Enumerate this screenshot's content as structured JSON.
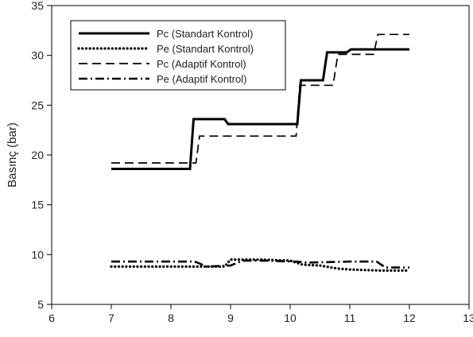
{
  "chart_data": {
    "type": "line",
    "title": "",
    "xlabel": "",
    "ylabel": "Basınç (bar)",
    "xlim": [
      6,
      13
    ],
    "ylim": [
      5,
      35
    ],
    "x_ticks": [
      "6",
      "7",
      "8",
      "9",
      "10",
      "11",
      "12",
      "13"
    ],
    "y_ticks": [
      "5",
      "10",
      "15",
      "20",
      "25",
      "30",
      "35"
    ],
    "grid": false,
    "legend_position": "top-left",
    "series": [
      {
        "name": "Pc (Standart Kontrol)",
        "style": "solid",
        "color": "#000000",
        "x": [
          7.0,
          8.32,
          8.38,
          8.9,
          8.96,
          10.12,
          10.18,
          10.55,
          10.62,
          10.95,
          11.02,
          12.0
        ],
        "y": [
          18.6,
          18.6,
          23.6,
          23.6,
          23.1,
          23.1,
          27.5,
          27.5,
          30.3,
          30.3,
          30.6,
          30.6
        ]
      },
      {
        "name": "Pe (Standart Kontrol)",
        "style": "dotted",
        "color": "#000000",
        "x": [
          7.0,
          7.5,
          8.0,
          8.5,
          8.9,
          9.0,
          9.5,
          10.0,
          10.2,
          10.5,
          10.8,
          11.0,
          11.5,
          12.0
        ],
        "y": [
          8.8,
          8.8,
          8.8,
          8.8,
          8.8,
          9.5,
          9.5,
          9.4,
          9.0,
          8.9,
          8.6,
          8.5,
          8.4,
          8.4
        ]
      },
      {
        "name": "Pc (Adaptif Kontrol)",
        "style": "dashed",
        "color": "#000000",
        "x": [
          7.0,
          8.42,
          8.48,
          10.1,
          10.16,
          10.72,
          10.8,
          11.4,
          11.47,
          12.0
        ],
        "y": [
          19.2,
          19.2,
          21.9,
          21.9,
          27.0,
          27.0,
          30.1,
          30.1,
          32.1,
          32.1
        ]
      },
      {
        "name": "Pe (Adaptif Kontrol)",
        "style": "dashdot",
        "color": "#000000",
        "x": [
          7.0,
          7.5,
          8.0,
          8.4,
          8.6,
          9.0,
          9.2,
          9.6,
          10.0,
          10.1,
          10.3,
          11.0,
          11.45,
          11.6,
          12.0
        ],
        "y": [
          9.3,
          9.3,
          9.3,
          9.3,
          8.8,
          8.9,
          9.4,
          9.4,
          9.3,
          9.3,
          9.2,
          9.3,
          9.3,
          8.7,
          8.7
        ]
      }
    ]
  }
}
